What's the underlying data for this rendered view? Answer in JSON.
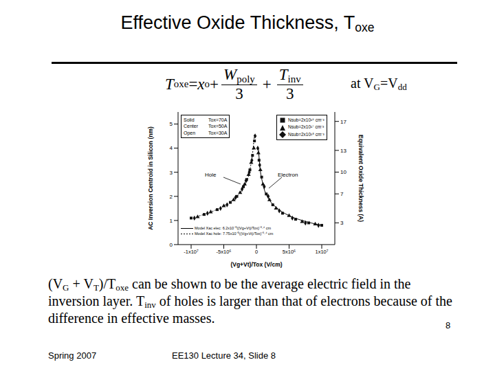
{
  "title": [
    [
      "Effective Oxide Thickness, T",
      ""
    ],
    [
      "oxe",
      "sub"
    ]
  ],
  "equation": {
    "left": [
      [
        "T",
        "i"
      ],
      [
        "oxe",
        "sub"
      ],
      [
        " = ",
        ""
      ],
      [
        "x",
        "i"
      ],
      [
        "o",
        "sub"
      ],
      [
        " + ",
        ""
      ]
    ],
    "frac1": {
      "num": [
        [
          "W",
          "i"
        ],
        [
          "poly",
          "sub"
        ]
      ],
      "den": "3"
    },
    "plus": "+",
    "frac2": {
      "num": [
        [
          "T",
          "i"
        ],
        [
          "inv",
          "sub"
        ]
      ],
      "den": "3"
    },
    "condition": [
      [
        "at V",
        ""
      ],
      [
        "G",
        "sub"
      ],
      [
        "=V",
        ""
      ],
      [
        "dd",
        "sub"
      ]
    ]
  },
  "chart_data": {
    "type": "scatter",
    "xlabel": "(Vg+Vt)/Tox (V/cm)",
    "ylabel": "AC Inversion Centroid in Silicon (nm)",
    "y2label": "Equivalent Oxide Thickness (A)",
    "xlim": [
      -12000000,
      12000000
    ],
    "xticks": [
      {
        "value": -10000000,
        "label": "-1x10⁷"
      },
      {
        "value": -5000000,
        "label": "-5x10⁶"
      },
      0,
      {
        "value": 5000000,
        "label": "5x10⁶"
      },
      {
        "value": 10000000,
        "label": "1x10⁷"
      }
    ],
    "ylim": [
      0,
      5.5
    ],
    "yticks": [
      0,
      1,
      2,
      3,
      4,
      5
    ],
    "y2lim": [
      0,
      18.3
    ],
    "y2ticks": [
      3,
      7,
      10,
      13,
      17
    ],
    "legend": "upper right",
    "notes": [
      [
        "Solid",
        "Tox=70A"
      ],
      [
        "Center",
        "Tox=50A"
      ],
      [
        "Open",
        "Tox=30A"
      ]
    ],
    "annotations": [
      {
        "text": "Hole"
      },
      {
        "text": "Electron"
      }
    ],
    "series": [
      {
        "name": "Nsub=2x10¹⁶ cm⁻³",
        "type": "scatter",
        "marker": "square",
        "color": "#111111",
        "x": [
          -10000000,
          -8000000,
          -6000000,
          -4000000,
          -3000000,
          -2000000,
          -1500000,
          -1000000,
          -600000,
          -300000,
          400000,
          800000,
          1500000,
          2500000,
          4000000,
          6000000,
          8000000,
          10000000
        ],
        "values": [
          1.1,
          1.25,
          1.45,
          1.75,
          2.0,
          2.4,
          2.7,
          3.1,
          3.7,
          4.3,
          3.5,
          2.8,
          2.1,
          1.65,
          1.3,
          1.05,
          0.9,
          0.8
        ]
      },
      {
        "name": "Nsub=2x10¹⁷ cm⁻³",
        "type": "scatter",
        "marker": "triangle",
        "color": "#111111",
        "x": [
          -9000000,
          -7000000,
          -5000000,
          -3500000,
          -2500000,
          -1800000,
          -1200000,
          -800000,
          -400000,
          300000,
          600000,
          1000000,
          2000000,
          3000000,
          5000000,
          7000000,
          9000000
        ],
        "values": [
          1.15,
          1.35,
          1.6,
          1.85,
          2.15,
          2.5,
          2.9,
          3.4,
          4.0,
          3.8,
          3.1,
          2.5,
          1.85,
          1.5,
          1.2,
          0.95,
          0.85
        ]
      },
      {
        "name": "Nsub=2x10¹⁸ cm⁻³",
        "type": "scatter",
        "marker": "diamond",
        "color": "#111111",
        "x": [
          -9500000,
          -7500000,
          -5500000,
          -4500000,
          -3200000,
          -2200000,
          -1600000,
          -1100000,
          -700000,
          -200000,
          200000,
          500000,
          1200000,
          1800000,
          3500000,
          5500000,
          7500000,
          9500000
        ],
        "values": [
          1.1,
          1.3,
          1.5,
          1.65,
          1.95,
          2.3,
          2.65,
          3.0,
          3.5,
          4.5,
          4.0,
          3.3,
          2.4,
          2.0,
          1.4,
          1.1,
          0.9,
          0.8
        ]
      },
      {
        "name": "Model Xac elec: 6.2x10⁻⁵((Vg+Vt)/Tox)⁻⁰·⁴ cm",
        "type": "line",
        "line_style": "solid",
        "color": "#000000",
        "x": [
          300000,
          500000,
          1000000,
          2000000,
          3000000,
          5000000,
          7000000,
          10000000
        ],
        "values": [
          4.0,
          3.3,
          2.5,
          1.85,
          1.55,
          1.2,
          1.0,
          0.8
        ]
      },
      {
        "name": "Model Xac hole: 7.75x10⁻⁵((Vg+Vt)/Tox)⁻⁰·⁴ cm",
        "type": "line",
        "line_style": "dotted",
        "color": "#000000",
        "x": [
          -10000000,
          -7000000,
          -5000000,
          -3000000,
          -2000000,
          -1000000,
          -500000,
          -300000
        ],
        "values": [
          1.1,
          1.35,
          1.6,
          2.0,
          2.35,
          3.1,
          4.0,
          4.6
        ]
      }
    ]
  },
  "caption": [
    [
      "(V",
      ""
    ],
    [
      "G",
      "sub"
    ],
    [
      " + V",
      ""
    ],
    [
      "T",
      "sub"
    ],
    [
      ")/T",
      ""
    ],
    [
      "oxe",
      "sub"
    ],
    [
      " can be shown to be the average electric field in the inversion layer. T",
      ""
    ],
    [
      "inv",
      "sub"
    ],
    [
      " of holes is larger than that of electrons because of the difference in effective masses.",
      ""
    ]
  ],
  "footer": {
    "page": "8",
    "left": "Spring 2007",
    "center": "EE130 Lecture 34, Slide 8"
  }
}
